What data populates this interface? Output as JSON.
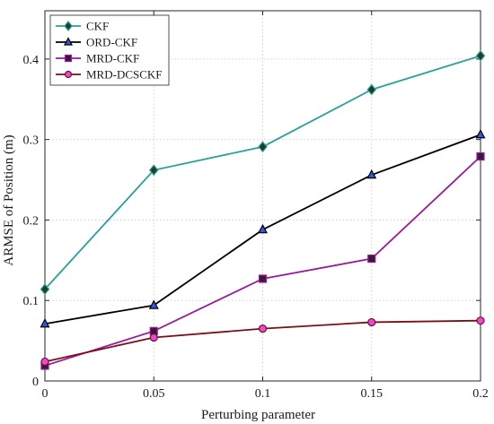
{
  "chart_data": {
    "type": "line",
    "title": "",
    "xlabel": "Perturbing parameter",
    "ylabel": "ARMSE of Position (m)",
    "x": [
      0,
      0.05,
      0.1,
      0.15,
      0.2
    ],
    "x_tick_labels": [
      "0",
      "0.05",
      "0.1",
      "0.15",
      "0.2"
    ],
    "y_tick_values": [
      0,
      0.1,
      0.2,
      0.3,
      0.4
    ],
    "y_tick_labels": [
      "0",
      "0.1",
      "0.2",
      "0.3",
      "0.4"
    ],
    "xlim": [
      0,
      0.2
    ],
    "ylim": [
      0,
      0.46
    ],
    "grid": true,
    "legend_position": "top-left",
    "series": [
      {
        "name": "CKF",
        "color": "#2aa198",
        "marker": "diamond",
        "marker_fill": "#1f3d2b",
        "values": [
          0.114,
          0.262,
          0.291,
          0.362,
          0.404
        ]
      },
      {
        "name": "ORD-CKF",
        "color": "#000000",
        "marker": "triangle",
        "marker_fill": "#2e5bdb",
        "values": [
          0.071,
          0.094,
          0.188,
          0.256,
          0.306
        ]
      },
      {
        "name": "MRD-CKF",
        "color": "#9a1aa0",
        "marker": "square",
        "marker_fill": "#3a1a3a",
        "values": [
          0.019,
          0.062,
          0.127,
          0.152,
          0.279
        ]
      },
      {
        "name": "MRD-DCSCKF",
        "color": "#7a0f1a",
        "marker": "circle",
        "marker_fill": "#e84ad8",
        "values": [
          0.024,
          0.054,
          0.065,
          0.073,
          0.075
        ]
      }
    ]
  }
}
